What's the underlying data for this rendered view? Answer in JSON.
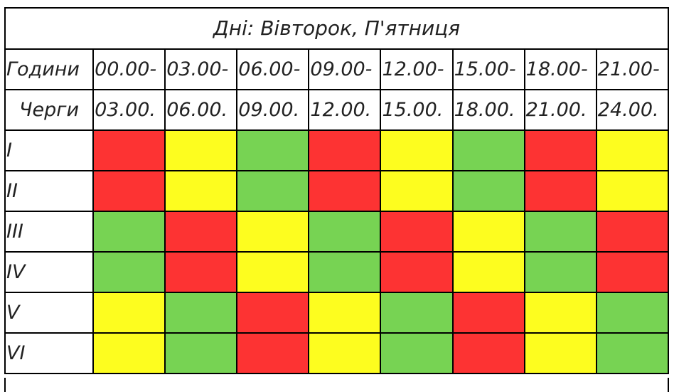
{
  "title": "Дні: Вівторок, П'ятниця",
  "hours_label": "Години",
  "queues_label": "Черги",
  "slots": [
    {
      "from": "00.00-",
      "to": "03.00."
    },
    {
      "from": "03.00-",
      "to": "06.00."
    },
    {
      "from": "06.00-",
      "to": "09.00."
    },
    {
      "from": "09.00-",
      "to": "12.00."
    },
    {
      "from": "12.00-",
      "to": "15.00."
    },
    {
      "from": "15.00-",
      "to": "18.00."
    },
    {
      "from": "18.00-",
      "to": "21.00."
    },
    {
      "from": "21.00-",
      "to": "24.00."
    }
  ],
  "colors": {
    "red": "#fd3333",
    "yellow": "#fdfd1f",
    "green": "#77d353"
  },
  "queues": [
    {
      "name": "I",
      "status": [
        "red",
        "yellow",
        "green",
        "red",
        "yellow",
        "green",
        "red",
        "yellow"
      ]
    },
    {
      "name": "II",
      "status": [
        "red",
        "yellow",
        "green",
        "red",
        "yellow",
        "green",
        "red",
        "yellow"
      ]
    },
    {
      "name": "III",
      "status": [
        "green",
        "red",
        "yellow",
        "green",
        "red",
        "yellow",
        "green",
        "red"
      ]
    },
    {
      "name": "IV",
      "status": [
        "green",
        "red",
        "yellow",
        "green",
        "red",
        "yellow",
        "green",
        "red"
      ]
    },
    {
      "name": "V",
      "status": [
        "yellow",
        "green",
        "red",
        "yellow",
        "green",
        "red",
        "yellow",
        "green"
      ]
    },
    {
      "name": "VI",
      "status": [
        "yellow",
        "green",
        "red",
        "yellow",
        "green",
        "red",
        "yellow",
        "green"
      ]
    }
  ]
}
